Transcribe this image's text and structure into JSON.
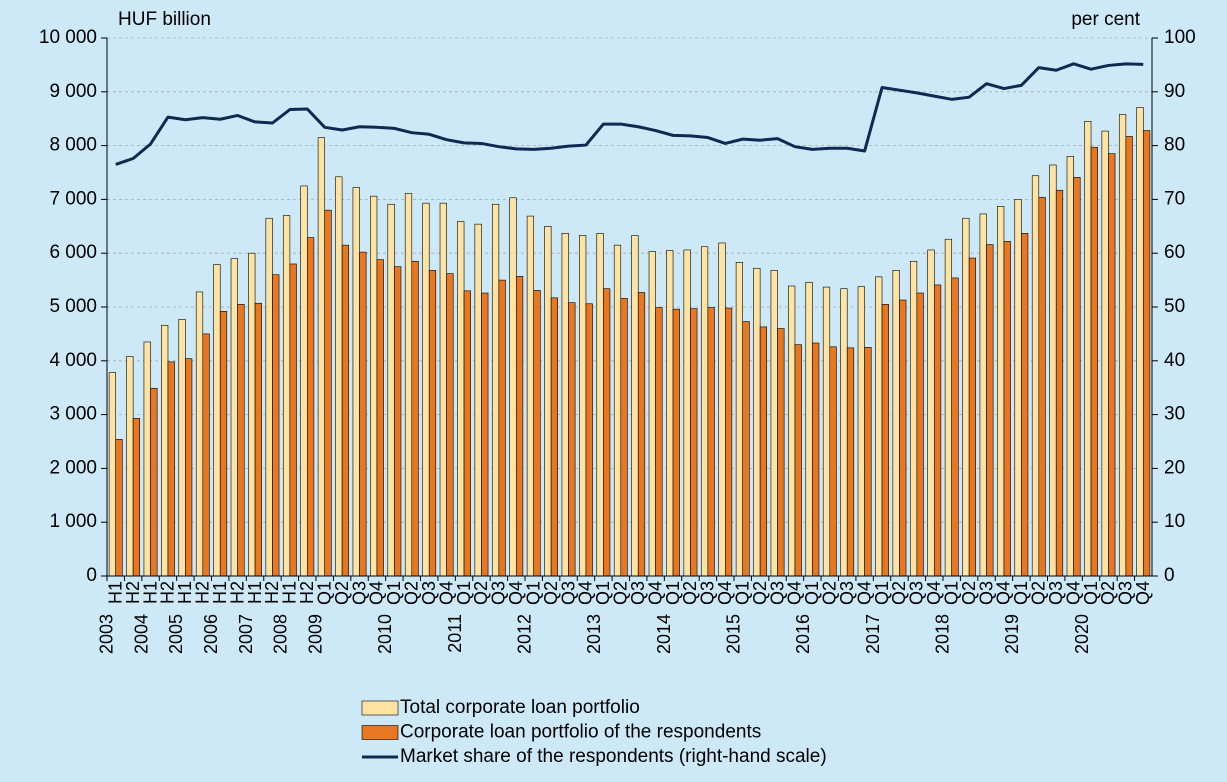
{
  "chart_data": {
    "type": "bar",
    "y_label": "HUF billion",
    "y2_label": "per cent",
    "categories": [
      [
        "2003",
        "H1"
      ],
      [
        null,
        "H2"
      ],
      [
        "2004",
        "H1"
      ],
      [
        null,
        "H2"
      ],
      [
        "2005",
        "H1"
      ],
      [
        null,
        "H2"
      ],
      [
        "2006",
        "H1"
      ],
      [
        null,
        "H2"
      ],
      [
        "2007",
        "H1"
      ],
      [
        null,
        "H2"
      ],
      [
        "2008",
        "H1"
      ],
      [
        null,
        "H2"
      ],
      [
        "2009",
        "Q1"
      ],
      [
        null,
        "Q2"
      ],
      [
        null,
        "Q3"
      ],
      [
        null,
        "Q4"
      ],
      [
        "2010",
        "Q1"
      ],
      [
        null,
        "Q2"
      ],
      [
        null,
        "Q3"
      ],
      [
        null,
        "Q4"
      ],
      [
        "2011",
        "Q1"
      ],
      [
        null,
        "Q2"
      ],
      [
        null,
        "Q3"
      ],
      [
        null,
        "Q4"
      ],
      [
        "2012",
        "Q1"
      ],
      [
        null,
        "Q2"
      ],
      [
        null,
        "Q3"
      ],
      [
        null,
        "Q4"
      ],
      [
        "2013",
        "Q1"
      ],
      [
        null,
        "Q2"
      ],
      [
        null,
        "Q3"
      ],
      [
        null,
        "Q4"
      ],
      [
        "2014",
        "Q1"
      ],
      [
        null,
        "Q2"
      ],
      [
        null,
        "Q3"
      ],
      [
        null,
        "Q4"
      ],
      [
        "2015",
        "Q1"
      ],
      [
        null,
        "Q2"
      ],
      [
        null,
        "Q3"
      ],
      [
        null,
        "Q4"
      ],
      [
        "2016",
        "Q1"
      ],
      [
        null,
        "Q2"
      ],
      [
        null,
        "Q3"
      ],
      [
        null,
        "Q4"
      ],
      [
        "2017",
        "Q1"
      ],
      [
        null,
        "Q2"
      ],
      [
        null,
        "Q3"
      ],
      [
        null,
        "Q4"
      ],
      [
        "2018",
        "Q1"
      ],
      [
        null,
        "Q2"
      ],
      [
        null,
        "Q3"
      ],
      [
        null,
        "Q4"
      ],
      [
        "2019",
        "Q1"
      ],
      [
        null,
        "Q2"
      ],
      [
        null,
        "Q3"
      ],
      [
        null,
        "Q4"
      ],
      [
        "2020",
        "Q1"
      ],
      [
        null,
        "Q2"
      ],
      [
        null,
        "Q3"
      ],
      [
        null,
        "Q4"
      ]
    ],
    "series": [
      {
        "name": "Total corporate loan portfolio",
        "type": "bar",
        "color": "#ffe3a3",
        "values": [
          3780,
          4080,
          4350,
          4660,
          4770,
          5280,
          5790,
          5900,
          6000,
          6650,
          6700,
          7250,
          8150,
          7420,
          7220,
          7060,
          6910,
          7110,
          6930,
          6930,
          6590,
          6540,
          6910,
          7030,
          6690,
          6500,
          6370,
          6330,
          6370,
          6150,
          6330,
          6030,
          6050,
          6060,
          6120,
          6190,
          5830,
          5720,
          5680,
          5390,
          5460,
          5370,
          5340,
          5380,
          5560,
          5680,
          5850,
          6060,
          6260,
          6650,
          6730,
          6870,
          7000,
          7440,
          7640,
          7800,
          8450,
          8270,
          8580,
          8710
        ]
      },
      {
        "name": "Corporate loan portfolio of the respondents",
        "type": "bar",
        "color": "#e87722",
        "values": [
          2540,
          2930,
          3490,
          3980,
          4040,
          4500,
          4920,
          5050,
          5070,
          5600,
          5800,
          6290,
          6800,
          6150,
          6020,
          5880,
          5750,
          5850,
          5680,
          5620,
          5300,
          5260,
          5500,
          5570,
          5310,
          5170,
          5080,
          5060,
          5340,
          5160,
          5270,
          4990,
          4960,
          4970,
          4990,
          4980,
          4730,
          4630,
          4600,
          4300,
          4330,
          4260,
          4240,
          4250,
          5050,
          5130,
          5260,
          5410,
          5540,
          5910,
          6160,
          6220,
          6370,
          7040,
          7170,
          7410,
          7970,
          7850,
          8170,
          8280
        ]
      },
      {
        "name": "Market share of the respondents (right-hand scale)",
        "type": "line",
        "axis": "y2",
        "color": "#0d2a50",
        "values": [
          76.5,
          77.6,
          80.3,
          85.3,
          84.8,
          85.2,
          84.9,
          85.6,
          84.4,
          84.2,
          86.7,
          86.8,
          83.4,
          82.9,
          83.5,
          83.4,
          83.2,
          82.4,
          82.1,
          81.1,
          80.5,
          80.4,
          79.8,
          79.4,
          79.3,
          79.5,
          79.9,
          80.1,
          84.0,
          84.0,
          83.5,
          82.8,
          81.9,
          81.8,
          81.5,
          80.4,
          81.2,
          81.0,
          81.3,
          79.8,
          79.3,
          79.5,
          79.5,
          79.0,
          90.8,
          90.3,
          89.8,
          89.2,
          88.6,
          89.0,
          91.5,
          90.6,
          91.2,
          94.5,
          94.0,
          95.2,
          94.2,
          94.9,
          95.2,
          95.1
        ]
      }
    ],
    "ylim": [
      0,
      10000
    ],
    "yticks": [
      0,
      {
        "value": 1000,
        "label": "1 000"
      },
      {
        "value": 2000,
        "label": "2 000"
      },
      {
        "value": 3000,
        "label": "3 000"
      },
      {
        "value": 4000,
        "label": "4 000"
      },
      {
        "value": 5000,
        "label": "5 000"
      },
      {
        "value": 6000,
        "label": "6 000"
      },
      {
        "value": 7000,
        "label": "7 000"
      },
      {
        "value": 8000,
        "label": "8 000"
      },
      {
        "value": 9000,
        "label": "9 000"
      },
      {
        "value": 10000,
        "label": "10 000"
      }
    ],
    "y2lim": [
      0,
      100
    ],
    "y2ticks": [
      0,
      10,
      20,
      30,
      40,
      50,
      60,
      70,
      80,
      90,
      100
    ],
    "grid": true
  }
}
